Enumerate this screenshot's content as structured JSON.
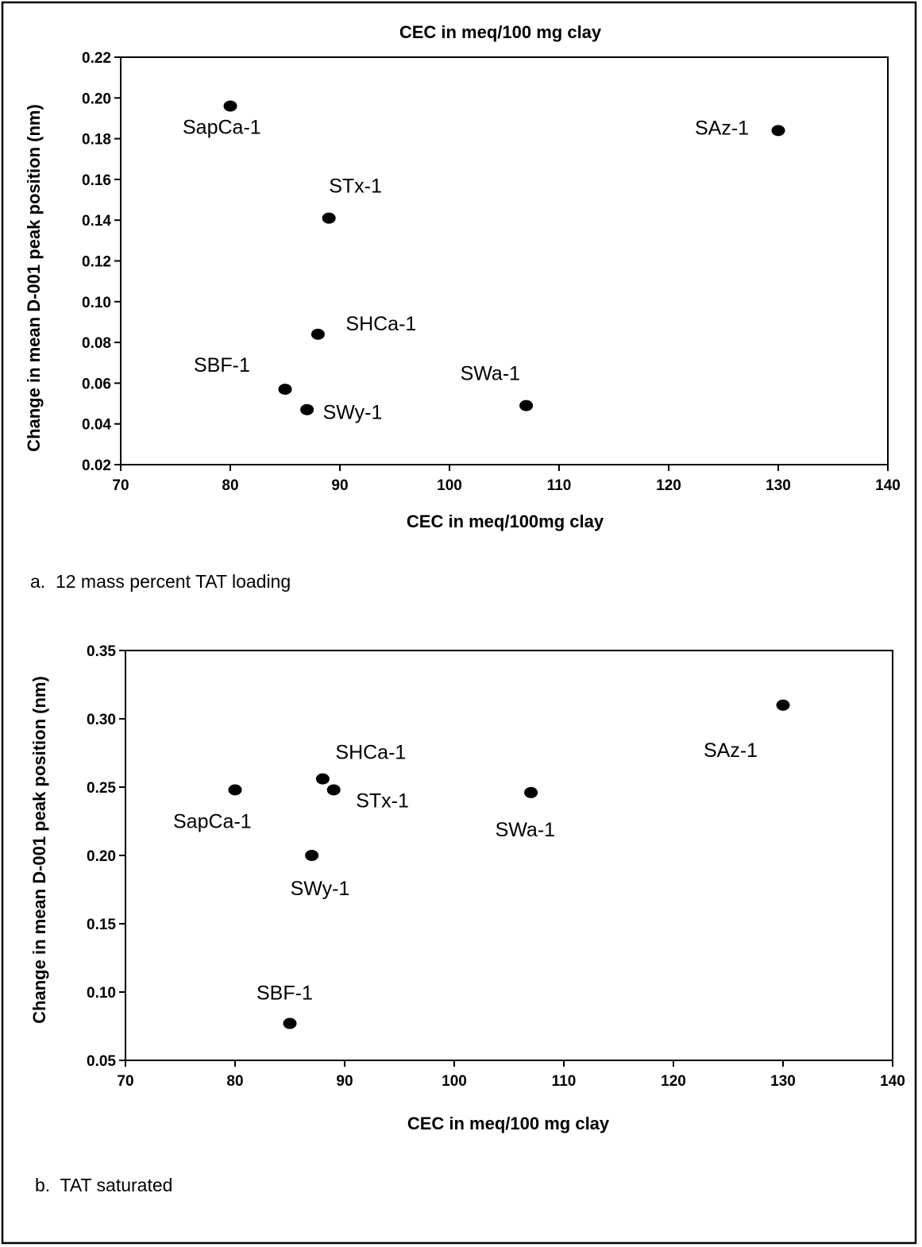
{
  "chart_data": [
    {
      "type": "scatter",
      "title": "CEC in meq/100 mg clay",
      "xlabel": "CEC in meq/100mg clay",
      "ylabel": "Change in mean D-001 peak position (nm)",
      "caption": "a.  12 mass percent TAT loading",
      "xlim": [
        70,
        140
      ],
      "ylim": [
        0.02,
        0.22
      ],
      "xticks": [
        "70",
        "80",
        "90",
        "100",
        "110",
        "120",
        "130",
        "140"
      ],
      "yticks": [
        "0.02",
        "0.04",
        "0.06",
        "0.08",
        "0.10",
        "0.12",
        "0.14",
        "0.16",
        "0.18",
        "0.20",
        "0.22"
      ],
      "grid": false,
      "points": [
        {
          "label": "SapCa-1",
          "x": 80,
          "y": 0.196
        },
        {
          "label": "SAz-1",
          "x": 130,
          "y": 0.184
        },
        {
          "label": "STx-1",
          "x": 89,
          "y": 0.141
        },
        {
          "label": "SHCa-1",
          "x": 88,
          "y": 0.084
        },
        {
          "label": "SBF-1",
          "x": 85,
          "y": 0.057
        },
        {
          "label": "SWy-1",
          "x": 87,
          "y": 0.047
        },
        {
          "label": "SWa-1",
          "x": 107,
          "y": 0.049
        }
      ]
    },
    {
      "type": "scatter",
      "title": "",
      "xlabel": "CEC in meq/100 mg clay",
      "ylabel": "Change in mean D-001 peak position (nm)",
      "caption": "b.  TAT saturated",
      "xlim": [
        70,
        140
      ],
      "ylim": [
        0.05,
        0.35
      ],
      "xticks": [
        "70",
        "80",
        "90",
        "100",
        "110",
        "120",
        "130",
        "140"
      ],
      "yticks": [
        "0.05",
        "0.10",
        "0.15",
        "0.20",
        "0.25",
        "0.30",
        "0.35"
      ],
      "grid": false,
      "points": [
        {
          "label": "SAz-1",
          "x": 130,
          "y": 0.31
        },
        {
          "label": "SHCa-1",
          "x": 88,
          "y": 0.256
        },
        {
          "label": "STx-1",
          "x": 89,
          "y": 0.248
        },
        {
          "label": "SapCa-1",
          "x": 80,
          "y": 0.248
        },
        {
          "label": "SWa-1",
          "x": 107,
          "y": 0.246
        },
        {
          "label": "SWy-1",
          "x": 87,
          "y": 0.2
        },
        {
          "label": "SBF-1",
          "x": 85,
          "y": 0.077
        }
      ]
    }
  ]
}
